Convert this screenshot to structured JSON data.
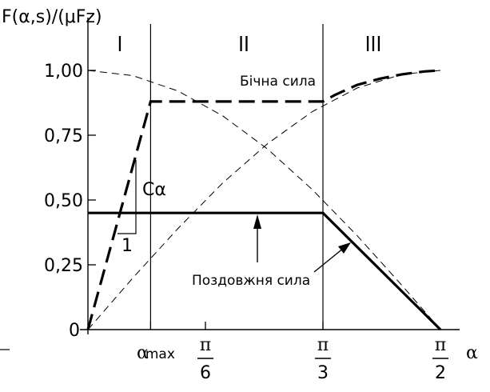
{
  "chart_data": {
    "type": "line",
    "ylabel": "F(α,s)/(μFz)",
    "xlabel": "α",
    "ylim": [
      0,
      1.0
    ],
    "y_ticks": [
      {
        "value": 0,
        "label": "0"
      },
      {
        "value": 0.25,
        "label": "0,25"
      },
      {
        "value": 0.5,
        "label": "0,50"
      },
      {
        "value": 0.75,
        "label": "0,75"
      },
      {
        "value": 1.0,
        "label": "1,00"
      }
    ],
    "x_ticks": [
      {
        "value": 0.2793,
        "label": "α",
        "sub": "max"
      },
      {
        "value": 0.5236,
        "num": "π",
        "den": "6"
      },
      {
        "value": 1.0472,
        "num": "π",
        "den": "3"
      },
      {
        "value": 1.5708,
        "num": "π",
        "den": "2"
      }
    ],
    "regions": [
      {
        "label": "I",
        "x_from": 0,
        "x_to": 0.2793
      },
      {
        "label": "II",
        "x_from": 0.2793,
        "x_to": 1.0472
      },
      {
        "label": "III",
        "x_from": 1.0472,
        "x_to": 1.5708
      }
    ],
    "series": [
      {
        "name": "Бічна сила",
        "style": "thick-dashed",
        "x": [
          0,
          0.2793,
          1.0472,
          1.1,
          1.2,
          1.3,
          1.4,
          1.5,
          1.5708
        ],
        "y": [
          0,
          0.88,
          0.88,
          0.905,
          0.944,
          0.968,
          0.985,
          0.996,
          1.0
        ]
      },
      {
        "name": "Поздовжня сила",
        "style": "solid",
        "x": [
          0,
          1.0472,
          1.5708
        ],
        "y": [
          0.45,
          0.45,
          0
        ]
      },
      {
        "style": "thin-dashed",
        "x": [
          0,
          0.2,
          0.4,
          0.6,
          0.8,
          1.0,
          1.2,
          1.4,
          1.5708
        ],
        "y": [
          1.0,
          0.98,
          0.921,
          0.825,
          0.697,
          0.54,
          0.362,
          0.17,
          0
        ]
      },
      {
        "style": "thin-dashed",
        "x": [
          0,
          0.2,
          0.4,
          0.6,
          0.8,
          1.0,
          1.2,
          1.4,
          1.5708
        ],
        "y": [
          0,
          0.199,
          0.389,
          0.565,
          0.717,
          0.841,
          0.932,
          0.985,
          1.0
        ]
      }
    ],
    "annotations": {
      "slope_label": "Cα",
      "slope_unit": "1"
    }
  }
}
